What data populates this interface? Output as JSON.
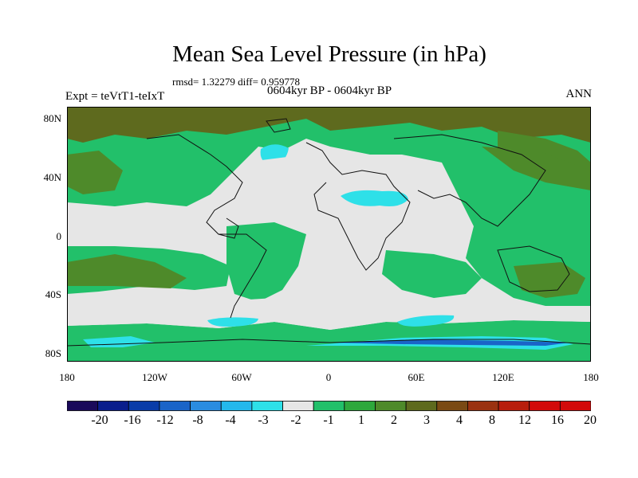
{
  "title": "Mean Sea Level Pressure (in hPa)",
  "stats_text": "rmsd= 1.32279 diff= 0.959778",
  "period_text": "0604kyr BP - 0604kyr BP",
  "experiment_text": "Expt = teVtT1-teIxT",
  "season_label": "ANN",
  "lat_labels": [
    "80N",
    "40N",
    "0",
    "40S",
    "80S"
  ],
  "lon_labels": [
    "180",
    "120W",
    "60W",
    "0",
    "60E",
    "120E",
    "180"
  ],
  "colorbar": {
    "colors": [
      "#1a0a5a",
      "#0a1e8c",
      "#0a3ca8",
      "#1a64c8",
      "#2a8ce0",
      "#24b8ec",
      "#2ee0e8",
      "#e6e6e6",
      "#22c06a",
      "#2ea83c",
      "#4e8a2a",
      "#5e6a1e",
      "#7a4a14",
      "#9a3210",
      "#b81e0c",
      "#d20a0a"
    ],
    "labels": [
      "-20",
      "-16",
      "-12",
      "-8",
      "-4",
      "-3",
      "-2",
      "-1",
      "1",
      "2",
      "3",
      "4",
      "8",
      "12",
      "16",
      "20"
    ]
  },
  "map_colors": {
    "neutral": "#e6e6e6",
    "green": "#22c06a",
    "dark_green": "#4e8a2a",
    "olive": "#5e6a1e",
    "cyan": "#2ee0e8",
    "blue": "#1a64c8",
    "coast": "#111111"
  }
}
